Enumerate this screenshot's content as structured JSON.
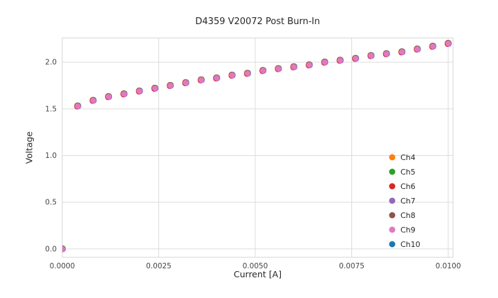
{
  "chart_data": {
    "type": "scatter",
    "title": "D4359 V20072 Post Burn-In",
    "xlabel": "Current [A]",
    "ylabel": "Voltage",
    "grid": true,
    "legend_position": "lower right",
    "xlim": [
      0,
      0.010125
    ],
    "ylim": [
      -0.09,
      2.26
    ],
    "xticks": {
      "values": [
        0,
        0.0025,
        0.005,
        0.0075,
        0.01
      ],
      "labels": [
        "0.0000",
        "0.0025",
        "0.0050",
        "0.0075",
        "0.0100"
      ]
    },
    "yticks": {
      "values": [
        0,
        0.5,
        1.0,
        1.5,
        2.0
      ],
      "labels": [
        "0.0",
        "0.5",
        "1.0",
        "1.5",
        "2.0"
      ]
    },
    "x": [
      0.0,
      0.0004,
      0.0008,
      0.0012,
      0.0016,
      0.002,
      0.0024,
      0.0028,
      0.0032,
      0.0036,
      0.004,
      0.0044,
      0.0048,
      0.0052,
      0.0056,
      0.006,
      0.0064,
      0.0068,
      0.0072,
      0.0076,
      0.008,
      0.0084,
      0.0088,
      0.0092,
      0.0096,
      0.01
    ],
    "y": [
      0.0,
      1.53,
      1.59,
      1.63,
      1.66,
      1.69,
      1.72,
      1.75,
      1.78,
      1.81,
      1.83,
      1.86,
      1.88,
      1.91,
      1.93,
      1.95,
      1.97,
      2.0,
      2.02,
      2.04,
      2.07,
      2.09,
      2.11,
      2.14,
      2.17,
      2.2
    ],
    "series_values_note": "all channels overlap on the same x/y points",
    "series": [
      {
        "name": "Ch4",
        "color": "#ff7f0e"
      },
      {
        "name": "Ch5",
        "color": "#2ca02c"
      },
      {
        "name": "Ch6",
        "color": "#d62728"
      },
      {
        "name": "Ch7",
        "color": "#9467bd"
      },
      {
        "name": "Ch8",
        "color": "#8c564b"
      },
      {
        "name": "Ch9",
        "color": "#e377c2"
      },
      {
        "name": "Ch10",
        "color": "#1f77b4"
      }
    ]
  },
  "style_colors": {
    "grid": "#dcdcdc",
    "plot_border": "#d4d4d4",
    "tick_text": "#444444",
    "legend_text": "#262626"
  }
}
